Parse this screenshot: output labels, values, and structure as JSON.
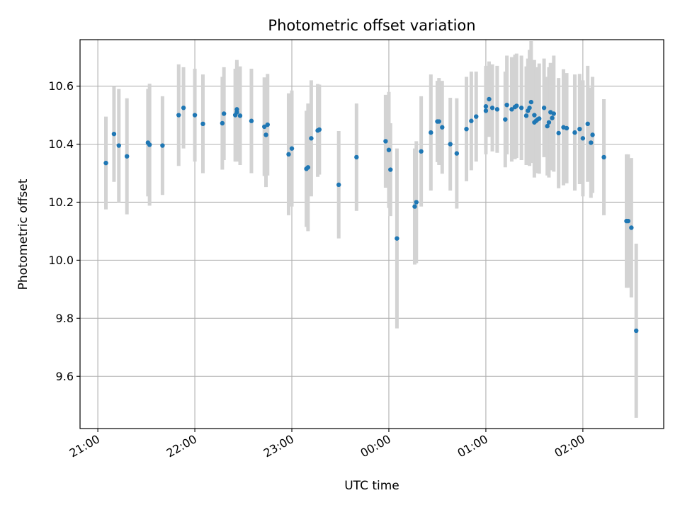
{
  "chart_data": {
    "type": "scatter",
    "title": "Photometric offset variation",
    "xlabel": "UTC time",
    "ylabel": "Photometric offset",
    "x_ticks": [
      {
        "value": 0,
        "label": "21:00"
      },
      {
        "value": 60,
        "label": "22:00"
      },
      {
        "value": 120,
        "label": "23:00"
      },
      {
        "value": 180,
        "label": "00:00"
      },
      {
        "value": 240,
        "label": "01:00"
      },
      {
        "value": 300,
        "label": "02:00"
      }
    ],
    "y_ticks": [
      9.6,
      9.8,
      10.0,
      10.2,
      10.4,
      10.6
    ],
    "xlim": [
      -11,
      350
    ],
    "ylim": [
      9.42,
      10.76
    ],
    "grid": true,
    "colors": {
      "point": "#1f77b4",
      "errorbar": "#d3d3d3",
      "grid": "#b0b0b0"
    },
    "series": [
      {
        "x_minutes_after_2100": [
          5,
          10,
          13,
          18,
          31,
          32,
          40,
          50,
          53,
          60,
          65,
          77,
          78,
          85,
          86,
          86,
          88,
          95,
          103,
          104,
          105,
          118,
          120,
          129,
          130,
          132,
          136,
          137,
          149,
          160,
          178,
          180,
          181,
          185,
          196,
          197,
          200,
          206,
          210,
          211,
          213,
          218,
          222,
          228,
          231,
          234,
          240,
          240,
          242,
          244,
          247,
          252,
          253,
          256,
          258,
          259,
          262,
          265,
          266,
          267,
          268,
          270,
          270,
          271,
          272,
          273,
          276,
          278,
          279,
          280,
          281,
          282,
          285,
          288,
          290,
          295,
          298,
          300,
          303,
          305,
          306,
          313
        ],
        "y": [
          10.335,
          10.435,
          10.395,
          10.358,
          10.405,
          10.398,
          10.395,
          10.5,
          10.525,
          10.5,
          10.47,
          10.472,
          10.505,
          10.5,
          10.51,
          10.52,
          10.498,
          10.48,
          10.46,
          10.432,
          10.467,
          10.365,
          10.385,
          10.315,
          10.32,
          10.42,
          10.447,
          10.45,
          10.26,
          10.355,
          10.41,
          10.38,
          10.312,
          10.075,
          10.185,
          10.2,
          10.375,
          10.44,
          10.478,
          10.478,
          10.458,
          10.4,
          10.368,
          10.452,
          10.48,
          10.495,
          10.515,
          10.53,
          10.555,
          10.525,
          10.52,
          10.485,
          10.535,
          10.52,
          10.528,
          10.532,
          10.525,
          10.498,
          10.515,
          10.525,
          10.545,
          10.475,
          10.5,
          10.48,
          10.485,
          10.488,
          10.525,
          10.462,
          10.475,
          10.51,
          10.49,
          10.505,
          10.438,
          10.458,
          10.455,
          10.44,
          10.452,
          10.42,
          10.47,
          10.405,
          10.432,
          10.355
        ],
        "yerr": [
          0.16,
          0.165,
          0.195,
          0.2,
          0.185,
          0.21,
          0.17,
          0.175,
          0.14,
          0.16,
          0.17,
          0.16,
          0.16,
          0.16,
          0.17,
          0.17,
          0.17,
          0.18,
          0.17,
          0.18,
          0.175,
          0.21,
          0.2,
          0.2,
          0.22,
          0.2,
          0.16,
          0.155,
          0.185,
          0.185,
          0.16,
          0.2,
          0.16,
          0.31,
          0.2,
          0.21,
          0.19,
          0.2,
          0.14,
          0.15,
          0.16,
          0.16,
          0.19,
          0.18,
          0.17,
          0.155,
          0.15,
          0.14,
          0.13,
          0.15,
          0.15,
          0.165,
          0.17,
          0.18,
          0.18,
          0.18,
          0.18,
          0.17,
          0.18,
          0.2,
          0.21,
          0.19,
          0.19,
          0.18,
          0.18,
          0.19,
          0.17,
          0.17,
          0.19,
          0.17,
          0.18,
          0.2,
          0.19,
          0.2,
          0.19,
          0.2,
          0.19,
          0.2,
          0.2,
          0.19,
          0.2,
          0.2
        ]
      },
      {
        "x_minutes_after_2100": [
          327,
          328,
          330,
          333
        ],
        "y": [
          10.135,
          10.135,
          10.112,
          9.757
        ],
        "yerr": [
          0.23,
          0.23,
          0.24,
          0.3
        ]
      }
    ]
  }
}
